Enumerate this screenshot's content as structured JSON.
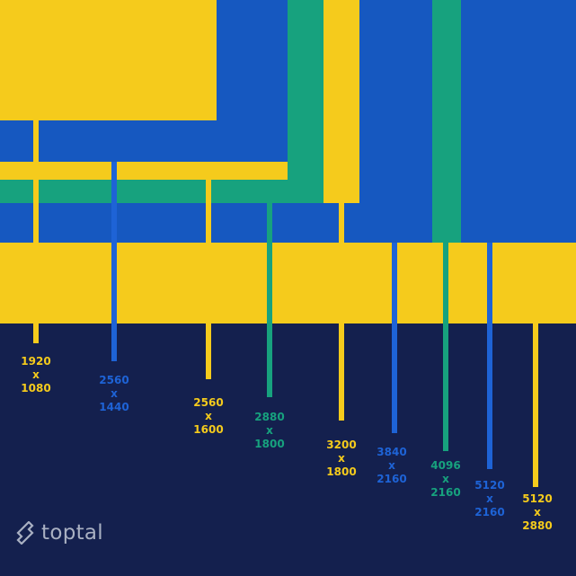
{
  "colors": {
    "yellow": "#f5cb1c",
    "blue": "#1658c0",
    "green": "#17a27e",
    "navy": "#14204e",
    "logo": "#a9b0c2"
  },
  "resolutions": [
    {
      "width": "1920",
      "sep": "x",
      "height": "1080",
      "color": "#f5cb1c"
    },
    {
      "width": "2560",
      "sep": "x",
      "height": "1440",
      "color": "#1e63d6"
    },
    {
      "width": "2560",
      "sep": "x",
      "height": "1600",
      "color": "#f5cb1c"
    },
    {
      "width": "2880",
      "sep": "x",
      "height": "1800",
      "color": "#17a27e"
    },
    {
      "width": "3200",
      "sep": "x",
      "height": "1800",
      "color": "#f5cb1c"
    },
    {
      "width": "3840",
      "sep": "x",
      "height": "2160",
      "color": "#1e63d6"
    },
    {
      "width": "4096",
      "sep": "x",
      "height": "2160",
      "color": "#17a27e"
    },
    {
      "width": "5120",
      "sep": "x",
      "height": "2160",
      "color": "#1e63d6"
    },
    {
      "width": "5120",
      "sep": "x",
      "height": "2880",
      "color": "#f5cb1c"
    }
  ],
  "logo": {
    "text": "toptal",
    "icon": "toptal-logo-icon"
  }
}
